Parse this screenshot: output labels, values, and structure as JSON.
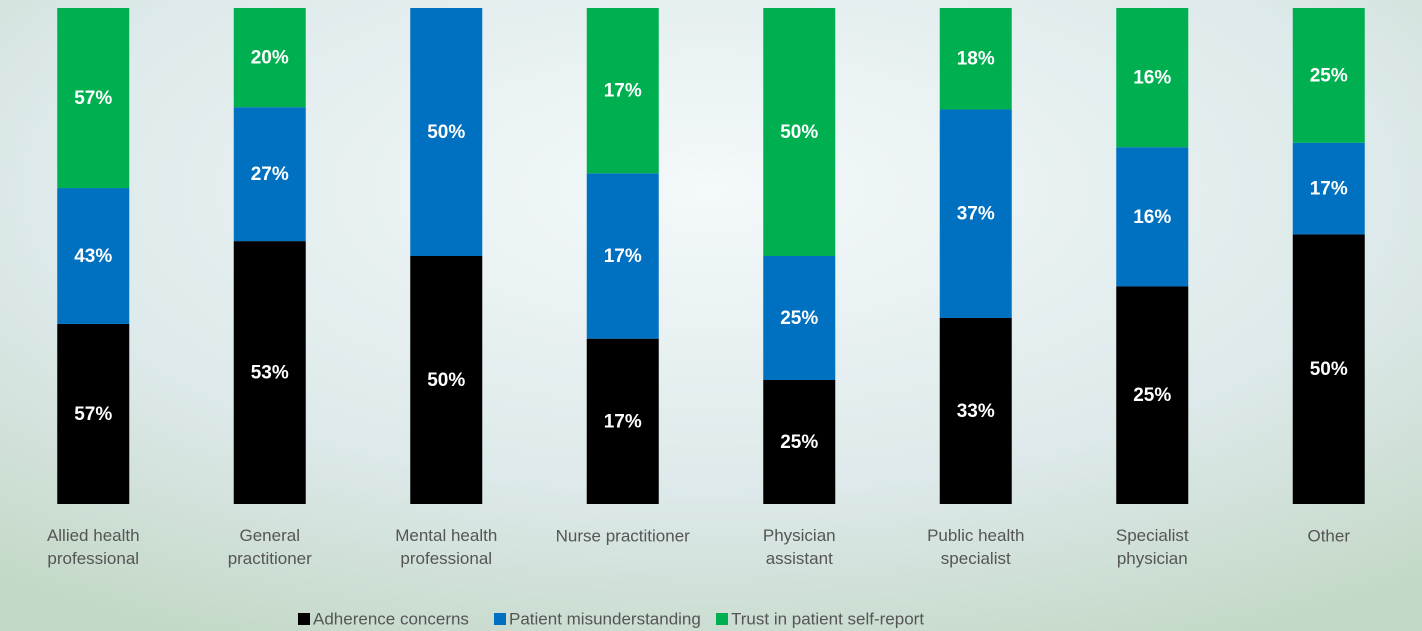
{
  "chart_data": {
    "type": "stacked_percent_bar",
    "categories": [
      "Allied health professional",
      "General practitioner",
      "Mental health professional",
      "Nurse practitioner",
      "Physician assistant",
      "Public health specialist",
      "Specialist physician",
      "Other"
    ],
    "series": [
      {
        "name": "Adherence concerns",
        "color": "#000000",
        "values": [
          57,
          53,
          50,
          17,
          25,
          33,
          25,
          50
        ]
      },
      {
        "name": "Patient misunderstanding",
        "color": "#0070c0",
        "values": [
          43,
          27,
          50,
          17,
          25,
          37,
          16,
          17
        ]
      },
      {
        "name": "Trust in patient self-report",
        "color": "#00b050",
        "values": [
          57,
          20,
          null,
          17,
          50,
          18,
          16,
          25
        ]
      }
    ],
    "value_labels": [
      [
        "57%",
        "53%",
        "50%",
        "17%",
        "25%",
        "33%",
        "25%",
        "50%"
      ],
      [
        "43%",
        "27%",
        "50%",
        "17%",
        "25%",
        "37%",
        "16%",
        "17%"
      ],
      [
        "57%",
        "20%",
        null,
        "17%",
        "50%",
        "18%",
        "16%",
        "25%"
      ]
    ],
    "legend": "bottom"
  }
}
